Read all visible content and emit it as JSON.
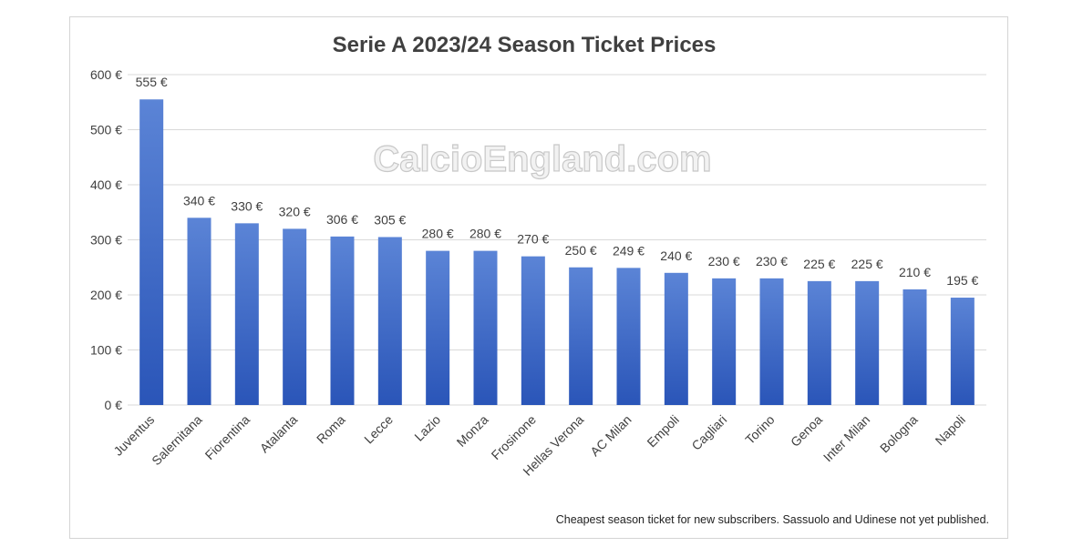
{
  "chart_data": {
    "type": "bar",
    "title": "Serie A 2023/24 Season Ticket Prices",
    "watermark": "CalcioEngland.com",
    "footnote": "Cheapest season ticket for new subscribers. Sassuolo and Udinese not yet published.",
    "xlabel": "",
    "ylabel": "",
    "ylim": [
      0,
      600
    ],
    "yticks": [
      0,
      100,
      200,
      300,
      400,
      500,
      600
    ],
    "ytick_labels": [
      "0 €",
      "100 €",
      "200 €",
      "300 €",
      "400 €",
      "500 €",
      "600 €"
    ],
    "grid": true,
    "categories": [
      "Juventus",
      "Salernitana",
      "Fiorentina",
      "Atalanta",
      "Roma",
      "Lecce",
      "Lazio",
      "Monza",
      "Frosinone",
      "Hellas Verona",
      "AC Milan",
      "Empoli",
      "Cagliari",
      "Torino",
      "Genoa",
      "Inter Milan",
      "Bologna",
      "Napoli"
    ],
    "values": [
      555,
      340,
      330,
      320,
      306,
      305,
      280,
      280,
      270,
      250,
      249,
      240,
      230,
      230,
      225,
      225,
      210,
      195
    ],
    "data_labels": [
      "555 €",
      "340 €",
      "330 €",
      "320 €",
      "306 €",
      "305 €",
      "280 €",
      "280 €",
      "270 €",
      "250 €",
      "249 €",
      "240 €",
      "230 €",
      "230 €",
      "225 €",
      "225 €",
      "210 €",
      "195 €"
    ],
    "colors": {
      "bar_top": "#5b84d6",
      "bar_bottom": "#2a55b8",
      "grid": "#d9d9d9",
      "text": "#404040",
      "watermark": "#cfcfcf"
    }
  }
}
